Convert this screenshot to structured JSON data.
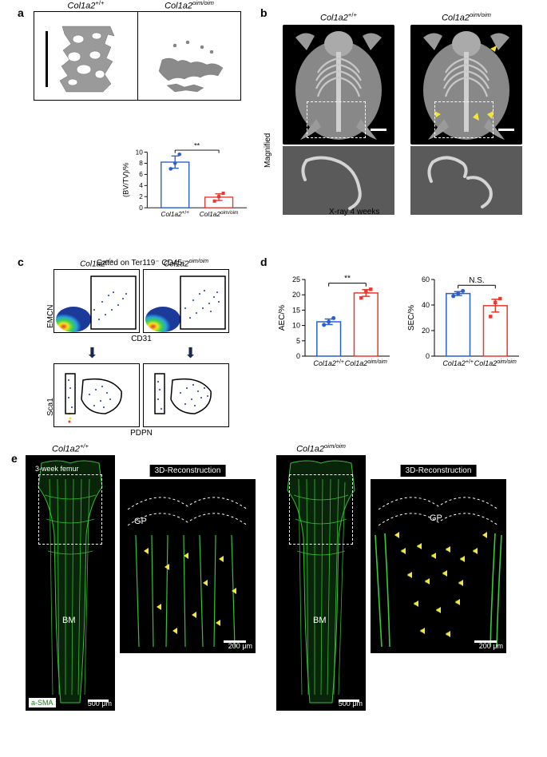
{
  "genotypes": {
    "wt": "Col1a2",
    "wt_sup": "+/+",
    "oim": "Col1a2",
    "oim_sup": "oim/oim"
  },
  "panel_a": {
    "scalebar_color": "#000000",
    "chart": {
      "type": "bar",
      "ylabel": "(BV/TV)/%",
      "ylim": [
        0,
        10
      ],
      "yticks": [
        0,
        2,
        4,
        6,
        8,
        10
      ],
      "categories": [
        "wt",
        "oim"
      ],
      "means": [
        8.2,
        1.9
      ],
      "sems": [
        1.1,
        0.6
      ],
      "points": {
        "wt": [
          7.0,
          8.0,
          9.6
        ],
        "oim": [
          1.2,
          2.0,
          2.6
        ]
      },
      "colors": {
        "wt": "#2a5fd0",
        "oim": "#e8382f"
      },
      "sig_label": "**",
      "sig_color": "#000000",
      "bar_fill": "none",
      "bar_stroke_width": 1.5,
      "axis_color": "#000000",
      "font_size": 10
    }
  },
  "panel_b": {
    "magnified_label": "Magnified",
    "caption": "X-ray   4 weeks",
    "scalebar_color": "#ffffff",
    "arrow_color": "#f5e53a"
  },
  "panel_c": {
    "gate_label": "Gated on Ter119⁻ CD45⁻",
    "y_top": "EMCN",
    "x_top": "CD31",
    "y_bot": "Sca1",
    "x_bot": "PDPN",
    "plot_border": "#000000",
    "density_colors": [
      "#1b3a9a",
      "#2aa0e0",
      "#3ad24a",
      "#f2e22a",
      "#ef3a1a"
    ]
  },
  "panel_d": {
    "charts": [
      {
        "type": "bar",
        "ylabel": "AEC/%",
        "ylim": [
          0,
          25
        ],
        "yticks": [
          0,
          5,
          10,
          15,
          20,
          25
        ],
        "means": [
          11.2,
          20.6
        ],
        "sems": [
          0.9,
          1.1
        ],
        "points": {
          "wt": [
            10.2,
            11.2,
            12.4
          ],
          "oim": [
            19.0,
            21.0,
            21.8
          ]
        },
        "sig_label": "**"
      },
      {
        "type": "bar",
        "ylabel": "SEC/%",
        "ylim": [
          0,
          60
        ],
        "yticks": [
          0,
          20,
          40,
          60
        ],
        "means": [
          49.0,
          39.5
        ],
        "sems": [
          1.5,
          5.0
        ],
        "points": {
          "wt": [
            47.0,
            49.0,
            51.0
          ],
          "oim": [
            31.0,
            42.0,
            45.0
          ]
        },
        "sig_label": "N.S."
      }
    ],
    "colors": {
      "wt": "#2a5fd0",
      "oim": "#e8382f"
    },
    "bar_fill": "none",
    "bar_stroke_width": 1.5,
    "axis_color": "#000000",
    "font_size": 10
  },
  "panel_e": {
    "femur_age": "3-week femur",
    "recon_label": "3D-Reconstruction",
    "gp_label": "GP",
    "bm_label": "BM",
    "asma_label": "a-SMA",
    "scale_femur": "500 μm",
    "scale_recon": "200 μm",
    "green": "#39d93a",
    "arrow_color": "#f5e53a",
    "scalebar_color": "#ffffff"
  }
}
